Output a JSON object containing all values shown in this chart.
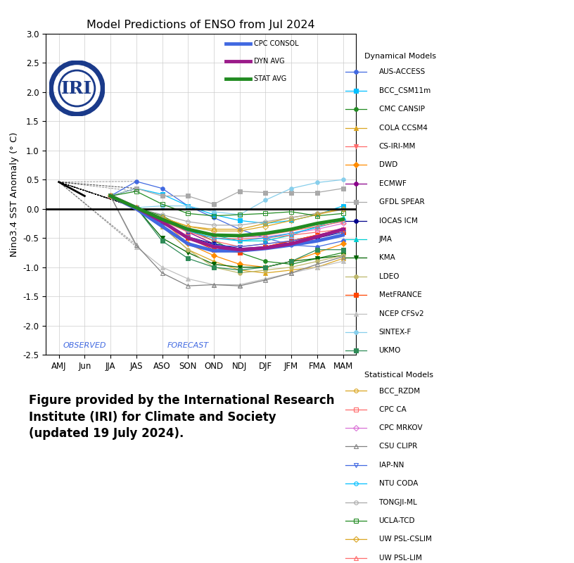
{
  "title": "Model Predictions of ENSO from Jul 2024",
  "ylabel": "Nino3.4 SST Anomaly (° C)",
  "xticks": [
    "AMJ",
    "Jun",
    "JJA",
    "JAS",
    "ASO",
    "SON",
    "OND",
    "NDJ",
    "DJF",
    "JFM",
    "FMA",
    "MAM"
  ],
  "ylim": [
    -2.5,
    3.0
  ],
  "yticks": [
    -2.5,
    -2.0,
    -1.5,
    -1.0,
    -0.5,
    0.0,
    0.5,
    1.0,
    1.5,
    2.0,
    2.5,
    3.0
  ],
  "observed_label": "OBSERVED",
  "forecast_label": "FORECAST",
  "background_color": "#ffffff",
  "figure_text": "Figure provided by the International Research\nInstitute (IRI) for Climate and Society\n(updated 19 July 2024).",
  "observed_data": {
    "x": [
      0,
      1,
      2
    ],
    "y": [
      0.46,
      0.22,
      0.22
    ]
  },
  "dynamical_models": [
    {
      "name": "AUS-ACCESS",
      "color": "#4169E1",
      "marker": "o",
      "x": [
        2,
        3,
        4,
        5,
        6,
        7,
        8,
        9,
        10,
        11
      ],
      "y": [
        0.22,
        0.47,
        0.35,
        0.05,
        -0.15,
        -0.35,
        -0.5,
        -0.62,
        -0.65,
        -0.55
      ]
    },
    {
      "name": "BCC_CSM11m",
      "color": "#00BFFF",
      "marker": "s",
      "x": [
        2,
        3,
        4,
        5,
        6,
        7,
        8,
        9,
        10,
        11
      ],
      "y": [
        0.22,
        0.35,
        0.25,
        0.05,
        -0.1,
        -0.2,
        -0.25,
        -0.2,
        -0.1,
        0.05
      ]
    },
    {
      "name": "CMC CANSIP",
      "color": "#228B22",
      "marker": "o",
      "x": [
        2,
        3,
        4,
        5,
        6,
        7,
        8,
        9,
        10,
        11
      ],
      "y": [
        0.22,
        0.02,
        -0.12,
        -0.35,
        -0.55,
        -0.75,
        -0.9,
        -0.95,
        -0.85,
        -0.75
      ]
    },
    {
      "name": "COLA CCSM4",
      "color": "#DAA520",
      "marker": "^",
      "x": [
        2,
        3,
        4,
        5,
        6,
        7,
        8,
        9,
        10,
        11
      ],
      "y": [
        0.22,
        0.02,
        -0.3,
        -0.7,
        -0.9,
        -1.05,
        -1.1,
        -1.05,
        -1.0,
        -0.85
      ]
    },
    {
      "name": "CS-IRI-MM",
      "color": "#FF6B6B",
      "marker": "v",
      "x": [
        2,
        3,
        4,
        5,
        6,
        7,
        8,
        9,
        10,
        11
      ],
      "y": [
        0.22,
        0.02,
        -0.18,
        -0.38,
        -0.55,
        -0.65,
        -0.6,
        -0.55,
        -0.45,
        -0.35
      ]
    },
    {
      "name": "DWD",
      "color": "#FF8C00",
      "marker": "D",
      "x": [
        2,
        3,
        4,
        5,
        6,
        7,
        8,
        9,
        10,
        11
      ],
      "y": [
        0.22,
        0.02,
        -0.2,
        -0.6,
        -0.8,
        -0.95,
        -1.0,
        -0.9,
        -0.75,
        -0.6
      ]
    },
    {
      "name": "ECMWF",
      "color": "#8B008B",
      "marker": "o",
      "x": [
        2,
        3,
        4,
        5,
        6,
        7,
        8,
        9,
        10,
        11
      ],
      "y": [
        0.22,
        0.02,
        -0.15,
        -0.4,
        -0.6,
        -0.7,
        -0.65,
        -0.55,
        -0.45,
        -0.35
      ]
    },
    {
      "name": "GFDL SPEAR",
      "color": "#A9A9A9",
      "marker": "s",
      "x": [
        2,
        3,
        4,
        5,
        6,
        7,
        8,
        9,
        10,
        11
      ],
      "y": [
        0.22,
        0.35,
        0.22,
        0.22,
        0.08,
        0.3,
        0.28,
        0.28,
        0.28,
        0.35
      ]
    },
    {
      "name": "IOCAS ICM",
      "color": "#00008B",
      "marker": "o",
      "x": [
        2,
        3,
        4,
        5,
        6,
        7,
        8,
        9,
        10,
        11
      ],
      "y": [
        0.22,
        0.02,
        -0.25,
        -0.48,
        -0.6,
        -0.68,
        -0.65,
        -0.58,
        -0.5,
        -0.4
      ]
    },
    {
      "name": "JMA",
      "color": "#00CED1",
      "marker": "^",
      "x": [
        2,
        3,
        4,
        5,
        6,
        7,
        8,
        9,
        10,
        11
      ],
      "y": [
        0.22,
        0.02,
        -0.15,
        -0.35,
        -0.45,
        -0.55,
        -0.55,
        -0.45,
        -0.3,
        -0.15
      ]
    },
    {
      "name": "KMA",
      "color": "#006400",
      "marker": "v",
      "x": [
        2,
        3,
        4,
        5,
        6,
        7,
        8,
        9,
        10,
        11
      ],
      "y": [
        0.22,
        0.02,
        -0.5,
        -0.75,
        -0.95,
        -1.0,
        -1.0,
        -0.9,
        -0.85,
        -0.8
      ]
    },
    {
      "name": "LDEO",
      "color": "#BDB76B",
      "marker": "o",
      "x": [
        2,
        3,
        4,
        5,
        6,
        7,
        8,
        9,
        10,
        11
      ],
      "y": [
        0.22,
        0.02,
        -0.3,
        -0.7,
        -1.0,
        -1.1,
        -1.05,
        -1.0,
        -0.9,
        -0.8
      ]
    },
    {
      "name": "MetFRANCE",
      "color": "#FF4500",
      "marker": "s",
      "x": [
        2,
        3,
        4,
        5,
        6,
        7,
        8,
        9,
        10,
        11
      ],
      "y": [
        0.22,
        0.02,
        -0.2,
        -0.5,
        -0.7,
        -0.75,
        -0.65,
        -0.55,
        -0.45,
        -0.4
      ]
    },
    {
      "name": "NCEP CFSv2",
      "color": "#C0C0C0",
      "marker": "^",
      "x": [
        2,
        3,
        4,
        5,
        6,
        7,
        8,
        9,
        10,
        11
      ],
      "y": [
        0.22,
        -0.65,
        -1.0,
        -1.2,
        -1.3,
        -1.3,
        -1.2,
        -1.1,
        -1.0,
        -0.9
      ]
    },
    {
      "name": "SINTEX-F",
      "color": "#87CEEB",
      "marker": "o",
      "x": [
        2,
        3,
        4,
        5,
        6,
        7,
        8,
        9,
        10,
        11
      ],
      "y": [
        0.22,
        0.02,
        0.05,
        0.05,
        -0.05,
        -0.1,
        0.15,
        0.35,
        0.45,
        0.5
      ]
    },
    {
      "name": "UKMO",
      "color": "#2E8B57",
      "marker": "s",
      "x": [
        2,
        3,
        4,
        5,
        6,
        7,
        8,
        9,
        10,
        11
      ],
      "y": [
        0.22,
        0.02,
        -0.55,
        -0.85,
        -1.0,
        -1.05,
        -1.0,
        -0.9,
        -0.7,
        -0.7
      ]
    }
  ],
  "statistical_models": [
    {
      "name": "BCC_RZDM",
      "color": "#DAA520",
      "marker": "o",
      "x": [
        2,
        3,
        4,
        5,
        6,
        7,
        8,
        9,
        10,
        11
      ],
      "y": [
        0.22,
        0.02,
        -0.15,
        -0.3,
        -0.35,
        -0.35,
        -0.25,
        -0.15,
        -0.08,
        0.0
      ]
    },
    {
      "name": "CPC CA",
      "color": "#FF6B6B",
      "marker": "s",
      "x": [
        2,
        3,
        4,
        5,
        6,
        7,
        8,
        9,
        10,
        11
      ],
      "y": [
        0.22,
        0.02,
        -0.2,
        -0.4,
        -0.5,
        -0.52,
        -0.5,
        -0.45,
        -0.4,
        -0.35
      ]
    },
    {
      "name": "CPC MRKOV",
      "color": "#DA70D6",
      "marker": "D",
      "x": [
        2,
        3,
        4,
        5,
        6,
        7,
        8,
        9,
        10,
        11
      ],
      "y": [
        0.22,
        0.02,
        -0.18,
        -0.35,
        -0.45,
        -0.48,
        -0.48,
        -0.42,
        -0.35,
        -0.25
      ]
    },
    {
      "name": "CSU CLIPR",
      "color": "#808080",
      "marker": "^",
      "x": [
        2,
        3,
        4,
        5,
        6,
        7,
        8,
        9,
        10,
        11
      ],
      "y": [
        0.22,
        -0.62,
        -1.1,
        -1.32,
        -1.3,
        -1.32,
        -1.22,
        -1.1,
        -0.95,
        -0.82
      ]
    },
    {
      "name": "IAP-NN",
      "color": "#4169E1",
      "marker": "v",
      "x": [
        2,
        3,
        4,
        5,
        6,
        7,
        8,
        9,
        10,
        11
      ],
      "y": [
        0.22,
        0.02,
        -0.25,
        -0.48,
        -0.62,
        -0.65,
        -0.6,
        -0.55,
        -0.48,
        -0.4
      ]
    },
    {
      "name": "NTU CODA",
      "color": "#00BFFF",
      "marker": "o",
      "x": [
        2,
        3,
        4,
        5,
        6,
        7,
        8,
        9,
        10,
        11
      ],
      "y": [
        0.22,
        0.02,
        -0.18,
        -0.38,
        -0.5,
        -0.55,
        -0.5,
        -0.42,
        -0.32,
        -0.2
      ]
    },
    {
      "name": "TONGJI-ML",
      "color": "#A9A9A9",
      "marker": "o",
      "x": [
        2,
        3,
        4,
        5,
        6,
        7,
        8,
        9,
        10,
        11
      ],
      "y": [
        0.22,
        0.02,
        -0.1,
        -0.22,
        -0.28,
        -0.28,
        -0.22,
        -0.15,
        -0.08,
        -0.02
      ]
    },
    {
      "name": "UCLA-TCD",
      "color": "#228B22",
      "marker": "s",
      "x": [
        2,
        3,
        4,
        5,
        6,
        7,
        8,
        9,
        10,
        11
      ],
      "y": [
        0.22,
        0.3,
        0.08,
        -0.08,
        -0.12,
        -0.1,
        -0.08,
        -0.05,
        -0.12,
        -0.08
      ]
    },
    {
      "name": "UW PSL-CSLIM",
      "color": "#DAA520",
      "marker": "D",
      "x": [
        2,
        3,
        4,
        5,
        6,
        7,
        8,
        9,
        10,
        11
      ],
      "y": [
        0.22,
        0.02,
        -0.15,
        -0.3,
        -0.38,
        -0.38,
        -0.3,
        -0.2,
        -0.1,
        0.0
      ]
    },
    {
      "name": "UW PSL-LIM",
      "color": "#FF6B6B",
      "marker": "^",
      "x": [
        2,
        3,
        4,
        5,
        6,
        7,
        8,
        9,
        10,
        11
      ],
      "y": [
        0.22,
        0.02,
        -0.18,
        -0.35,
        -0.45,
        -0.48,
        -0.45,
        -0.38,
        -0.3,
        -0.22
      ]
    }
  ],
  "cpc_consol": {
    "color": "#4169E1",
    "lw": 3.5,
    "x": [
      2,
      3,
      4,
      5,
      6,
      7,
      8,
      9,
      10,
      11
    ],
    "y": [
      0.22,
      0.0,
      -0.3,
      -0.6,
      -0.72,
      -0.72,
      -0.68,
      -0.62,
      -0.55,
      -0.45
    ]
  },
  "dyn_avg": {
    "color": "#9B1B8A",
    "lw": 3.5,
    "x": [
      2,
      3,
      4,
      5,
      6,
      7,
      8,
      9,
      10,
      11
    ],
    "y": [
      0.22,
      0.02,
      -0.22,
      -0.5,
      -0.65,
      -0.7,
      -0.67,
      -0.6,
      -0.48,
      -0.35
    ]
  },
  "stat_avg": {
    "color": "#228B22",
    "lw": 3.5,
    "x": [
      2,
      3,
      4,
      5,
      6,
      7,
      8,
      9,
      10,
      11
    ],
    "y": [
      0.22,
      0.02,
      -0.18,
      -0.35,
      -0.45,
      -0.46,
      -0.42,
      -0.35,
      -0.25,
      -0.18
    ]
  },
  "logo_color": "#1a3a8a",
  "observed_color": "#4169E1",
  "forecast_color": "#4169E1"
}
